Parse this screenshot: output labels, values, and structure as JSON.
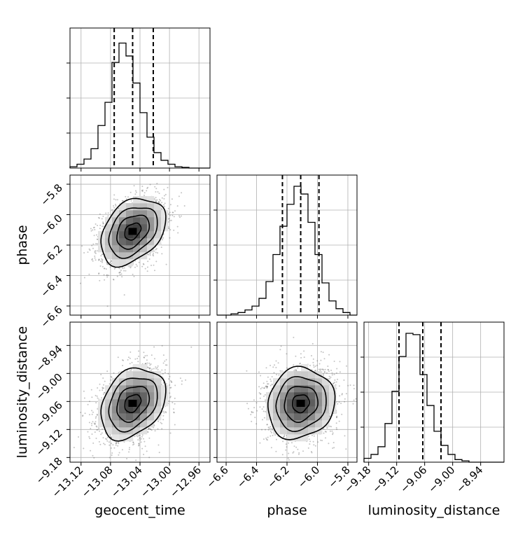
{
  "chart_data": {
    "type": "corner",
    "parameters": [
      {
        "key": "geocent_time",
        "label": "geocent_time",
        "range": [
          -13.135,
          -12.945
        ],
        "ticks": [
          -13.12,
          -13.08,
          -13.04,
          -13.0,
          -12.96
        ],
        "tick_labels": [
          "−13.12",
          "−13.08",
          "−13.04",
          "−13.00",
          "−12.96"
        ],
        "quantiles": [
          -13.075,
          -13.05,
          -13.022
        ]
      },
      {
        "key": "phase",
        "label": "phase",
        "range": [
          -6.66,
          -5.74
        ],
        "ticks": [
          -6.6,
          -6.4,
          -6.2,
          -6.0,
          -5.8
        ],
        "tick_labels": [
          "−6.6",
          "−6.4",
          "−6.2",
          "−6.0",
          "−5.8"
        ],
        "quantiles": [
          -6.23,
          -6.11,
          -5.99
        ]
      },
      {
        "key": "luminosity_distance",
        "label": "luminosity_distance",
        "range": [
          -9.19,
          -8.89
        ],
        "ticks": [
          -9.18,
          -9.12,
          -9.06,
          -9.0,
          -8.94
        ],
        "tick_labels": [
          "−9.18",
          "−9.12",
          "−9.06",
          "−9.00",
          "−8.94"
        ],
        "quantiles": [
          -9.115,
          -9.064,
          -9.025
        ]
      }
    ],
    "histograms": {
      "geocent_time": [
        0.01,
        0.03,
        0.07,
        0.15,
        0.33,
        0.51,
        0.82,
        0.97,
        0.87,
        0.66,
        0.43,
        0.24,
        0.12,
        0.06,
        0.03,
        0.01,
        0.005,
        0.0,
        0.0,
        0.0
      ],
      "phase": [
        0.0,
        0.0,
        0.01,
        0.02,
        0.04,
        0.07,
        0.13,
        0.26,
        0.47,
        0.69,
        0.86,
        1.0,
        0.94,
        0.72,
        0.47,
        0.25,
        0.11,
        0.05,
        0.02,
        0.0
      ],
      "luminosity_distance": [
        0.03,
        0.06,
        0.12,
        0.3,
        0.55,
        0.82,
        1.0,
        0.99,
        0.68,
        0.44,
        0.24,
        0.13,
        0.06,
        0.02,
        0.01,
        0.0,
        0.0,
        0.0,
        0.0,
        0.0
      ]
    },
    "joint": [
      {
        "x": "geocent_time",
        "y": "phase",
        "mean": [
          -13.05,
          -6.11
        ],
        "sd": [
          0.022,
          0.11
        ],
        "rho": 0.35
      },
      {
        "x": "geocent_time",
        "y": "luminosity_distance",
        "mean": [
          -13.05,
          -9.064
        ],
        "sd": [
          0.022,
          0.038
        ],
        "rho": 0.3
      },
      {
        "x": "phase",
        "y": "luminosity_distance",
        "mean": [
          -6.11,
          -9.064
        ],
        "sd": [
          0.11,
          0.038
        ],
        "rho": 0.1
      }
    ],
    "contour_levels_sigma": [
      0.5,
      1.0,
      1.5,
      2.0
    ],
    "grid": true
  }
}
